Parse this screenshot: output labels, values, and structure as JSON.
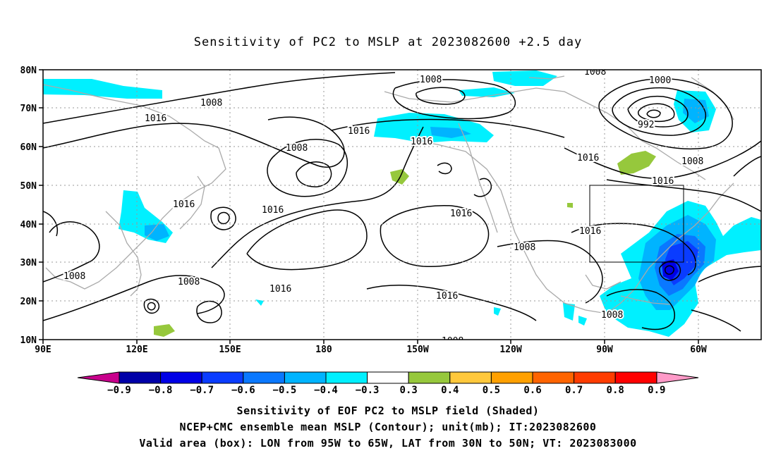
{
  "title": "Sensitivity of PC2 to MSLP at 2023082600 +2.5 day",
  "lat_labels": [
    "80N",
    "70N",
    "60N",
    "50N",
    "40N",
    "30N",
    "20N",
    "10N"
  ],
  "lon_labels": [
    "90E",
    "120E",
    "150E",
    "180",
    "150W",
    "120W",
    "90W",
    "60W"
  ],
  "contour_labels": {
    "c1008_a": "1008",
    "c1008_b": "1008",
    "c1008_c": "1008",
    "c1008_d": "1008",
    "c1008_e": "1008",
    "c1008_f": "1008",
    "c1008_g": "1008",
    "c1008_h": "1008",
    "c1008_i": "1008",
    "c1008_j": "1008",
    "c1016_a": "1016",
    "c1016_b": "1016",
    "c1016_c": "1016",
    "c1016_d": "1016",
    "c1016_e": "1016",
    "c1016_f": "1016",
    "c1016_g": "1016",
    "c1016_h": "1016",
    "c1016_i": "1016",
    "c1016_j": "1016",
    "c1016_k": "1016",
    "c1000": "1000",
    "c992": "992"
  },
  "colorbar": {
    "labels": [
      "-0.9",
      "-0.8",
      "-0.7",
      "-0.6",
      "-0.5",
      "-0.4",
      "-0.3",
      "0.3",
      "0.4",
      "0.5",
      "0.6",
      "0.7",
      "0.8",
      "0.9"
    ],
    "colors": [
      "#0000a8",
      "#0000e6",
      "#0a3cff",
      "#0a78ff",
      "#00b4ff",
      "#00f0ff",
      "#ffffff",
      "#96c83c",
      "#ffc83c",
      "#ffa000",
      "#ff6400",
      "#ff3c00",
      "#ff0000"
    ],
    "low_end_color": "#c8008c",
    "high_end_color": "#ff9ac8"
  },
  "captions": {
    "line1": "Sensitivity of EOF PC2 to MSLP field (Shaded)",
    "line2": "NCEP+CMC ensemble mean MSLP (Contour); unit(mb); IT:2023082600",
    "line3": "Valid area (box): LON from 95W to 65W, LAT from 30N to 50N; VT: 2023083000"
  }
}
